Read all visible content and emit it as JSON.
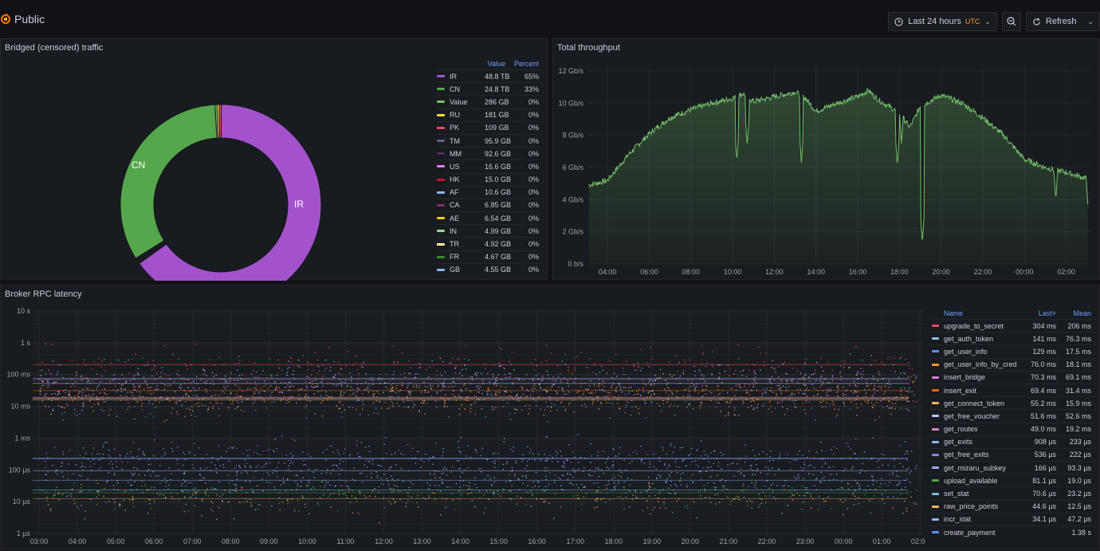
{
  "header": {
    "title": "Public",
    "time_range": "Last 24 hours",
    "timezone": "UTC",
    "refresh_label": "Refresh"
  },
  "panels": {
    "traffic": {
      "title": "Bridged (censored) traffic",
      "col_value": "Value",
      "col_percent": "Percent"
    },
    "throughput": {
      "title": "Total throughput"
    },
    "latency": {
      "title": "Broker RPC latency",
      "col_name": "Name",
      "col_last": "Last",
      "col_mean": "Mean"
    }
  },
  "chart_data": [
    {
      "type": "pie",
      "donut": true,
      "slice_labels": [
        "CN",
        "IR"
      ],
      "entries": [
        {
          "name": "IR",
          "value": "48.8 TB",
          "percent": "65%",
          "color": "#a352cc"
        },
        {
          "name": "CN",
          "value": "24.8 TB",
          "percent": "33%",
          "color": "#56a64b"
        },
        {
          "name": "Value",
          "value": "286 GB",
          "percent": "0%",
          "color": "#73bf69"
        },
        {
          "name": "RU",
          "value": "181 GB",
          "percent": "0%",
          "color": "#fade2a"
        },
        {
          "name": "PK",
          "value": "109 GB",
          "percent": "0%",
          "color": "#f2495c"
        },
        {
          "name": "TM",
          "value": "95.9 GB",
          "percent": "0%",
          "color": "#5f5f8f"
        },
        {
          "name": "MM",
          "value": "92.6 GB",
          "percent": "0%",
          "color": "#4f2d5a"
        },
        {
          "name": "US",
          "value": "16.6 GB",
          "percent": "0%",
          "color": "#e07be6"
        },
        {
          "name": "HK",
          "value": "15.0 GB",
          "percent": "0%",
          "color": "#c4162a"
        },
        {
          "name": "AF",
          "value": "10.6 GB",
          "percent": "0%",
          "color": "#8ab8ff"
        },
        {
          "name": "CA",
          "value": "6.85 GB",
          "percent": "0%",
          "color": "#7c2e6e"
        },
        {
          "name": "AE",
          "value": "6.54 GB",
          "percent": "0%",
          "color": "#f2cc0c"
        },
        {
          "name": "IN",
          "value": "4.99 GB",
          "percent": "0%",
          "color": "#96d98d"
        },
        {
          "name": "TR",
          "value": "4.92 GB",
          "percent": "0%",
          "color": "#fff899"
        },
        {
          "name": "FR",
          "value": "4.67 GB",
          "percent": "0%",
          "color": "#37872d"
        },
        {
          "name": "GB",
          "value": "4.55 GB",
          "percent": "0%",
          "color": "#8ab8ff"
        }
      ]
    },
    {
      "type": "area",
      "color": "#73bf69",
      "y_ticks": [
        "0 b/s",
        "2 Gb/s",
        "4 Gb/s",
        "6 Gb/s",
        "8 Gb/s",
        "10 Gb/s",
        "12 Gb/s"
      ],
      "ylim": [
        0,
        12.5
      ],
      "x_ticks": [
        "04:00",
        "06:00",
        "08:00",
        "10:00",
        "12:00",
        "14:00",
        "16:00",
        "18:00",
        "20:00",
        "22:00",
        "00:00",
        "02:00"
      ],
      "x_hours": [
        3.1,
        4,
        5,
        6,
        7,
        8,
        9,
        10,
        10.5,
        11,
        12,
        13,
        13.5,
        14,
        15,
        16,
        16.5,
        17,
        18,
        18.5,
        19,
        20,
        21,
        22,
        23,
        24,
        25,
        26,
        26.5,
        27
      ],
      "values": [
        4.9,
        5.2,
        6.8,
        8.1,
        9.1,
        9.6,
        10.0,
        10.3,
        10.6,
        10.1,
        10.4,
        10.7,
        10.3,
        9.5,
        10.0,
        10.4,
        10.8,
        10.2,
        9.4,
        8.5,
        9.8,
        10.5,
        10.0,
        9.1,
        8.0,
        6.5,
        6.0,
        5.7,
        5.5,
        5.3
      ],
      "dips": [
        {
          "hour": 10.2,
          "value": 6.4
        },
        {
          "hour": 10.7,
          "value": 7.3
        },
        {
          "hour": 13.3,
          "value": 6.3
        },
        {
          "hour": 17.9,
          "value": 6.1
        },
        {
          "hour": 18.1,
          "value": 7.5
        },
        {
          "hour": 19.1,
          "value": 1.3
        },
        {
          "hour": 25.5,
          "value": 4.0
        },
        {
          "hour": 27.05,
          "value": 3.5
        }
      ]
    },
    {
      "type": "scatter",
      "y_scale": "log",
      "y_ticks": [
        "1 µs",
        "10 µs",
        "100 µs",
        "1 ms",
        "10 ms",
        "100 ms",
        "1 s",
        "10 s"
      ],
      "x_ticks": [
        "03:00",
        "04:00",
        "05:00",
        "06:00",
        "07:00",
        "08:00",
        "09:00",
        "10:00",
        "11:00",
        "12:00",
        "13:00",
        "14:00",
        "15:00",
        "16:00",
        "17:00",
        "18:00",
        "19:00",
        "20:00",
        "21:00",
        "22:00",
        "23:00",
        "00:00",
        "01:00",
        "02:00"
      ],
      "series": [
        {
          "name": "upgrade_to_secret",
          "last": "304 ms",
          "mean": "206 ms",
          "color": "#f2495c",
          "mean_s": 0.206
        },
        {
          "name": "get_auth_token",
          "last": "141 ms",
          "mean": "76.3 ms",
          "color": "#8ac4e8",
          "mean_s": 0.0763
        },
        {
          "name": "get_user_info",
          "last": "129 ms",
          "mean": "17.5 ms",
          "color": "#5794f2",
          "mean_s": 0.0175
        },
        {
          "name": "get_user_info_by_cred",
          "last": "76.0 ms",
          "mean": "18.1 ms",
          "color": "#ff9830",
          "mean_s": 0.0181
        },
        {
          "name": "insert_bridge",
          "last": "70.3 ms",
          "mean": "69.1 ms",
          "color": "#e07be6",
          "mean_s": 0.0691
        },
        {
          "name": "insert_exit",
          "last": "69.4 ms",
          "mean": "31.4 ms",
          "color": "#fa6400",
          "mean_s": 0.0314
        },
        {
          "name": "get_connect_token",
          "last": "55.2 ms",
          "mean": "15.9 ms",
          "color": "#ffb357",
          "mean_s": 0.0159
        },
        {
          "name": "get_free_voucher",
          "last": "51.6 ms",
          "mean": "52.6 ms",
          "color": "#b4c8ff",
          "mean_s": 0.0526
        },
        {
          "name": "get_routes",
          "last": "49.0 ms",
          "mean": "19.2 ms",
          "color": "#d683ce",
          "mean_s": 0.0192
        },
        {
          "name": "get_exits",
          "last": "908 µs",
          "mean": "233 µs",
          "color": "#8ab8ff",
          "mean_s": 0.000233
        },
        {
          "name": "get_free_exits",
          "last": "536 µs",
          "mean": "222 µs",
          "color": "#9a7be6",
          "mean_s": 0.000222
        },
        {
          "name": "get_mizaru_subkey",
          "last": "166 µs",
          "mean": "93.3 µs",
          "color": "#a0a7ff",
          "mean_s": 9.33e-05
        },
        {
          "name": "upload_available",
          "last": "81.1 µs",
          "mean": "19.0 µs",
          "color": "#56a64b",
          "mean_s": 1.9e-05
        },
        {
          "name": "set_stat",
          "last": "70.6 µs",
          "mean": "23.2 µs",
          "color": "#73bfe0",
          "mean_s": 2.32e-05
        },
        {
          "name": "raw_price_points",
          "last": "44.6 µs",
          "mean": "12.5 µs",
          "color": "#ffb357",
          "mean_s": 1.25e-05
        },
        {
          "name": "incr_stat",
          "last": "34.1 µs",
          "mean": "47.2 µs",
          "color": "#8ab8ff",
          "mean_s": 4.72e-05
        },
        {
          "name": "create_payment",
          "last": "",
          "mean": "1.38 s",
          "color": "#5794f2",
          "mean_s": 1.38
        }
      ]
    }
  ]
}
